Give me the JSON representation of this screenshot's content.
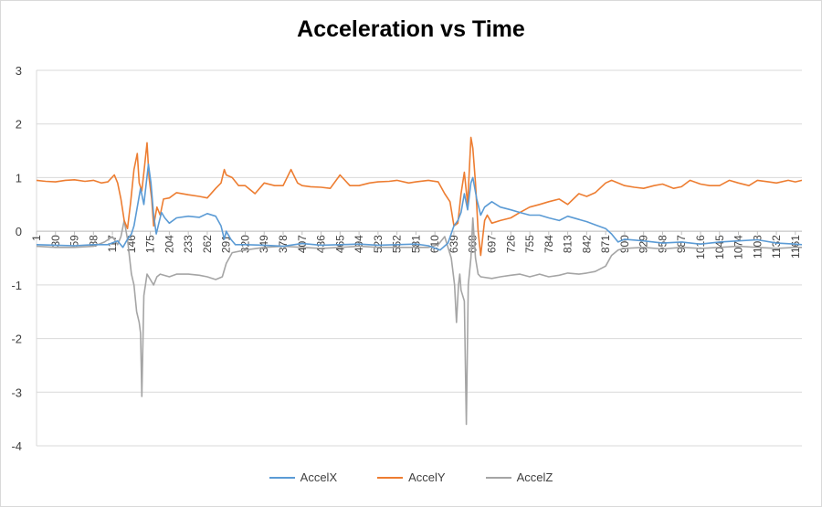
{
  "chart_data": {
    "type": "line",
    "title": "Acceleration vs Time",
    "xlabel": "",
    "ylabel": "",
    "ylim": [
      -4,
      3
    ],
    "yticks": [
      3,
      2,
      1,
      0,
      -1,
      -2,
      -3,
      -4
    ],
    "xticks": [
      1,
      30,
      59,
      88,
      117,
      146,
      175,
      204,
      233,
      262,
      291,
      320,
      349,
      378,
      407,
      436,
      465,
      494,
      523,
      552,
      581,
      610,
      639,
      668,
      697,
      726,
      755,
      784,
      813,
      842,
      871,
      900,
      929,
      958,
      987,
      1016,
      1045,
      1074,
      1103,
      1132,
      1161
    ],
    "xlim": [
      1,
      1171
    ],
    "grid": "horizontal",
    "legend": "bottom",
    "series": [
      {
        "name": "AccelX",
        "color": "#5b9bd5",
        "points": [
          [
            1,
            -0.25
          ],
          [
            30,
            -0.26
          ],
          [
            59,
            -0.27
          ],
          [
            88,
            -0.25
          ],
          [
            110,
            -0.25
          ],
          [
            125,
            -0.18
          ],
          [
            133,
            -0.3
          ],
          [
            140,
            -0.15
          ],
          [
            146,
            -0.05
          ],
          [
            150,
            0.1
          ],
          [
            155,
            0.45
          ],
          [
            160,
            0.8
          ],
          [
            165,
            0.5
          ],
          [
            172,
            1.25
          ],
          [
            176,
            0.9
          ],
          [
            180,
            0.3
          ],
          [
            184,
            -0.05
          ],
          [
            188,
            0.15
          ],
          [
            192,
            0.35
          ],
          [
            197,
            0.25
          ],
          [
            204,
            0.15
          ],
          [
            215,
            0.25
          ],
          [
            233,
            0.28
          ],
          [
            250,
            0.26
          ],
          [
            262,
            0.33
          ],
          [
            275,
            0.28
          ],
          [
            283,
            0.1
          ],
          [
            288,
            -0.15
          ],
          [
            291,
            0.0
          ],
          [
            298,
            -0.15
          ],
          [
            305,
            -0.25
          ],
          [
            320,
            -0.25
          ],
          [
            349,
            -0.26
          ],
          [
            378,
            -0.28
          ],
          [
            407,
            -0.23
          ],
          [
            436,
            -0.26
          ],
          [
            465,
            -0.25
          ],
          [
            494,
            -0.24
          ],
          [
            523,
            -0.26
          ],
          [
            552,
            -0.25
          ],
          [
            581,
            -0.24
          ],
          [
            600,
            -0.27
          ],
          [
            618,
            -0.35
          ],
          [
            630,
            -0.22
          ],
          [
            639,
            0.1
          ],
          [
            645,
            0.2
          ],
          [
            650,
            0.35
          ],
          [
            655,
            0.7
          ],
          [
            660,
            0.4
          ],
          [
            665,
            0.9
          ],
          [
            668,
            1.0
          ],
          [
            674,
            0.6
          ],
          [
            680,
            0.3
          ],
          [
            686,
            0.45
          ],
          [
            697,
            0.55
          ],
          [
            710,
            0.45
          ],
          [
            726,
            0.4
          ],
          [
            740,
            0.35
          ],
          [
            755,
            0.3
          ],
          [
            770,
            0.3
          ],
          [
            784,
            0.25
          ],
          [
            800,
            0.2
          ],
          [
            813,
            0.28
          ],
          [
            830,
            0.22
          ],
          [
            842,
            0.18
          ],
          [
            855,
            0.12
          ],
          [
            871,
            0.05
          ],
          [
            880,
            -0.05
          ],
          [
            890,
            -0.2
          ],
          [
            900,
            -0.15
          ],
          [
            929,
            -0.18
          ],
          [
            958,
            -0.22
          ],
          [
            987,
            -0.2
          ],
          [
            1016,
            -0.24
          ],
          [
            1045,
            -0.2
          ],
          [
            1074,
            -0.18
          ],
          [
            1103,
            -0.16
          ],
          [
            1132,
            -0.22
          ],
          [
            1161,
            -0.24
          ],
          [
            1171,
            -0.25
          ]
        ]
      },
      {
        "name": "AccelY",
        "color": "#ed7d31",
        "points": [
          [
            1,
            0.95
          ],
          [
            15,
            0.93
          ],
          [
            30,
            0.92
          ],
          [
            45,
            0.95
          ],
          [
            59,
            0.96
          ],
          [
            75,
            0.93
          ],
          [
            88,
            0.95
          ],
          [
            100,
            0.9
          ],
          [
            110,
            0.92
          ],
          [
            120,
            1.05
          ],
          [
            125,
            0.9
          ],
          [
            130,
            0.6
          ],
          [
            135,
            0.2
          ],
          [
            140,
            0.05
          ],
          [
            145,
            0.55
          ],
          [
            150,
            1.15
          ],
          [
            155,
            1.45
          ],
          [
            158,
            0.9
          ],
          [
            162,
            0.75
          ],
          [
            166,
            1.2
          ],
          [
            170,
            1.65
          ],
          [
            173,
            1.0
          ],
          [
            177,
            0.6
          ],
          [
            180,
            0.1
          ],
          [
            185,
            0.45
          ],
          [
            190,
            0.3
          ],
          [
            195,
            0.6
          ],
          [
            204,
            0.62
          ],
          [
            215,
            0.72
          ],
          [
            233,
            0.68
          ],
          [
            250,
            0.65
          ],
          [
            262,
            0.62
          ],
          [
            275,
            0.8
          ],
          [
            283,
            0.9
          ],
          [
            288,
            1.15
          ],
          [
            291,
            1.05
          ],
          [
            300,
            1.0
          ],
          [
            310,
            0.85
          ],
          [
            320,
            0.85
          ],
          [
            335,
            0.7
          ],
          [
            349,
            0.9
          ],
          [
            365,
            0.85
          ],
          [
            378,
            0.85
          ],
          [
            390,
            1.15
          ],
          [
            400,
            0.9
          ],
          [
            407,
            0.85
          ],
          [
            420,
            0.83
          ],
          [
            436,
            0.82
          ],
          [
            450,
            0.8
          ],
          [
            465,
            1.05
          ],
          [
            480,
            0.85
          ],
          [
            494,
            0.85
          ],
          [
            510,
            0.9
          ],
          [
            523,
            0.92
          ],
          [
            540,
            0.93
          ],
          [
            552,
            0.95
          ],
          [
            570,
            0.9
          ],
          [
            581,
            0.92
          ],
          [
            600,
            0.95
          ],
          [
            615,
            0.92
          ],
          [
            625,
            0.7
          ],
          [
            633,
            0.55
          ],
          [
            639,
            0.1
          ],
          [
            645,
            0.15
          ],
          [
            650,
            0.7
          ],
          [
            655,
            1.1
          ],
          [
            660,
            0.5
          ],
          [
            665,
            1.75
          ],
          [
            668,
            1.55
          ],
          [
            672,
            0.9
          ],
          [
            676,
            0.0
          ],
          [
            680,
            -0.45
          ],
          [
            686,
            0.2
          ],
          [
            690,
            0.3
          ],
          [
            697,
            0.15
          ],
          [
            710,
            0.2
          ],
          [
            726,
            0.25
          ],
          [
            740,
            0.35
          ],
          [
            755,
            0.45
          ],
          [
            770,
            0.5
          ],
          [
            784,
            0.55
          ],
          [
            800,
            0.6
          ],
          [
            813,
            0.5
          ],
          [
            830,
            0.7
          ],
          [
            842,
            0.65
          ],
          [
            855,
            0.72
          ],
          [
            871,
            0.9
          ],
          [
            880,
            0.95
          ],
          [
            900,
            0.85
          ],
          [
            915,
            0.82
          ],
          [
            929,
            0.8
          ],
          [
            945,
            0.85
          ],
          [
            958,
            0.88
          ],
          [
            975,
            0.8
          ],
          [
            987,
            0.83
          ],
          [
            1000,
            0.95
          ],
          [
            1016,
            0.88
          ],
          [
            1030,
            0.85
          ],
          [
            1045,
            0.85
          ],
          [
            1060,
            0.95
          ],
          [
            1074,
            0.9
          ],
          [
            1090,
            0.85
          ],
          [
            1103,
            0.95
          ],
          [
            1120,
            0.92
          ],
          [
            1132,
            0.9
          ],
          [
            1150,
            0.95
          ],
          [
            1161,
            0.92
          ],
          [
            1171,
            0.95
          ]
        ]
      },
      {
        "name": "AccelZ",
        "color": "#a5a5a5",
        "points": [
          [
            1,
            -0.28
          ],
          [
            30,
            -0.3
          ],
          [
            59,
            -0.3
          ],
          [
            88,
            -0.28
          ],
          [
            105,
            -0.2
          ],
          [
            117,
            -0.1
          ],
          [
            125,
            -0.25
          ],
          [
            130,
            -0.1
          ],
          [
            135,
            0.2
          ],
          [
            140,
            -0.15
          ],
          [
            146,
            -0.8
          ],
          [
            150,
            -1.0
          ],
          [
            154,
            -1.5
          ],
          [
            158,
            -1.7
          ],
          [
            160,
            -1.9
          ],
          [
            162,
            -3.08
          ],
          [
            165,
            -1.2
          ],
          [
            170,
            -0.8
          ],
          [
            175,
            -0.9
          ],
          [
            180,
            -1.0
          ],
          [
            185,
            -0.85
          ],
          [
            190,
            -0.8
          ],
          [
            204,
            -0.85
          ],
          [
            215,
            -0.8
          ],
          [
            233,
            -0.8
          ],
          [
            250,
            -0.82
          ],
          [
            262,
            -0.85
          ],
          [
            275,
            -0.9
          ],
          [
            285,
            -0.85
          ],
          [
            291,
            -0.6
          ],
          [
            300,
            -0.4
          ],
          [
            320,
            -0.35
          ],
          [
            349,
            -0.3
          ],
          [
            378,
            -0.28
          ],
          [
            407,
            -0.3
          ],
          [
            436,
            -0.32
          ],
          [
            465,
            -0.3
          ],
          [
            494,
            -0.28
          ],
          [
            523,
            -0.3
          ],
          [
            552,
            -0.3
          ],
          [
            581,
            -0.3
          ],
          [
            600,
            -0.3
          ],
          [
            615,
            -0.25
          ],
          [
            625,
            -0.1
          ],
          [
            630,
            -0.3
          ],
          [
            635,
            -0.5
          ],
          [
            640,
            -1.0
          ],
          [
            643,
            -1.7
          ],
          [
            646,
            -1.0
          ],
          [
            648,
            -0.8
          ],
          [
            650,
            -1.1
          ],
          [
            655,
            -1.3
          ],
          [
            658,
            -3.6
          ],
          [
            661,
            -1.0
          ],
          [
            665,
            -0.5
          ],
          [
            668,
            0.25
          ],
          [
            672,
            -0.5
          ],
          [
            676,
            -0.8
          ],
          [
            680,
            -0.85
          ],
          [
            697,
            -0.88
          ],
          [
            710,
            -0.85
          ],
          [
            726,
            -0.82
          ],
          [
            740,
            -0.8
          ],
          [
            755,
            -0.85
          ],
          [
            770,
            -0.8
          ],
          [
            784,
            -0.85
          ],
          [
            800,
            -0.82
          ],
          [
            813,
            -0.78
          ],
          [
            830,
            -0.8
          ],
          [
            842,
            -0.78
          ],
          [
            855,
            -0.75
          ],
          [
            871,
            -0.65
          ],
          [
            880,
            -0.45
          ],
          [
            890,
            -0.35
          ],
          [
            900,
            -0.32
          ],
          [
            929,
            -0.3
          ],
          [
            958,
            -0.33
          ],
          [
            987,
            -0.3
          ],
          [
            1016,
            -0.32
          ],
          [
            1045,
            -0.3
          ],
          [
            1074,
            -0.28
          ],
          [
            1103,
            -0.3
          ],
          [
            1132,
            -0.32
          ],
          [
            1161,
            -0.3
          ],
          [
            1171,
            -0.3
          ]
        ]
      }
    ]
  }
}
